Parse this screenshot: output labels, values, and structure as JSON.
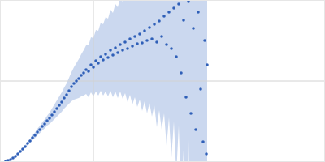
{
  "chart_data": {
    "type": "scatter",
    "color": "#2f5fb8",
    "grid": true,
    "tick_labels": false,
    "xlim": [
      0,
      4
    ],
    "ylim": [
      0,
      2
    ],
    "xticks": [
      1.15
    ],
    "yticks": [
      1
    ],
    "x": [
      0.07,
      0.1,
      0.13,
      0.16,
      0.19,
      0.22,
      0.25,
      0.28,
      0.31,
      0.34,
      0.37,
      0.4,
      0.43,
      0.46,
      0.49,
      0.52,
      0.55,
      0.58,
      0.61,
      0.64,
      0.67,
      0.7,
      0.73,
      0.76,
      0.79,
      0.82,
      0.85,
      0.88,
      0.91,
      0.94,
      0.97,
      1.0,
      1.03,
      1.06,
      1.09,
      1.12,
      1.15,
      1.18,
      1.21,
      1.24,
      1.27,
      1.3,
      1.33,
      1.36,
      1.39,
      1.42,
      1.45,
      1.48,
      1.51,
      1.54,
      1.57,
      1.6,
      1.63,
      1.66,
      1.69,
      1.72,
      1.75,
      1.78,
      1.81,
      1.84,
      1.87,
      1.9,
      1.93,
      1.96,
      1.99,
      2.02,
      2.05,
      2.08,
      2.11,
      2.14,
      2.17,
      2.2,
      2.23,
      2.26,
      2.29,
      2.32,
      2.35,
      2.38,
      2.41,
      2.44,
      2.47,
      2.5,
      2.52,
      2.54,
      2.55
    ],
    "y": [
      0.01,
      0.02,
      0.03,
      0.05,
      0.07,
      0.1,
      0.13,
      0.16,
      0.19,
      0.23,
      0.26,
      0.3,
      0.33,
      0.37,
      0.4,
      0.44,
      0.47,
      0.51,
      0.54,
      0.58,
      0.62,
      0.66,
      0.7,
      0.74,
      0.79,
      0.83,
      0.88,
      0.93,
      0.97,
      1.0,
      1.03,
      1.07,
      1.1,
      1.14,
      1.12,
      1.2,
      1.17,
      1.25,
      1.22,
      1.3,
      1.26,
      1.33,
      1.29,
      1.38,
      1.32,
      1.41,
      1.35,
      1.45,
      1.38,
      1.48,
      1.4,
      1.52,
      1.43,
      1.55,
      1.46,
      1.58,
      1.47,
      1.62,
      1.5,
      1.66,
      1.52,
      1.7,
      1.48,
      1.74,
      1.55,
      1.8,
      1.45,
      1.85,
      1.4,
      1.9,
      1.3,
      1.95,
      1.1,
      1.75,
      0.8,
      1.98,
      0.6,
      1.65,
      0.4,
      1.85,
      0.9,
      0.25,
      1.5,
      0.1,
      1.2
    ],
    "errors": [
      0.005,
      0.006,
      0.007,
      0.008,
      0.01,
      0.012,
      0.014,
      0.016,
      0.018,
      0.02,
      0.025,
      0.03,
      0.035,
      0.04,
      0.045,
      0.05,
      0.055,
      0.06,
      0.07,
      0.08,
      0.09,
      0.1,
      0.11,
      0.12,
      0.13,
      0.14,
      0.16,
      0.18,
      0.2,
      0.22,
      0.24,
      0.26,
      0.28,
      0.3,
      0.32,
      0.34,
      0.36,
      0.38,
      0.4,
      0.42,
      0.44,
      0.46,
      0.48,
      0.5,
      0.52,
      0.54,
      0.56,
      0.58,
      0.6,
      0.63,
      0.66,
      0.69,
      0.72,
      0.75,
      0.78,
      0.81,
      0.84,
      0.87,
      0.9,
      0.93,
      0.96,
      1.0,
      1.05,
      1.1,
      1.15,
      1.2,
      1.25,
      1.3,
      1.35,
      1.4,
      1.45,
      1.5,
      1.55,
      1.6,
      1.65,
      1.7,
      1.75,
      1.8,
      1.85,
      1.9,
      1.95,
      2.0,
      2.0,
      2.0,
      2.0
    ]
  }
}
